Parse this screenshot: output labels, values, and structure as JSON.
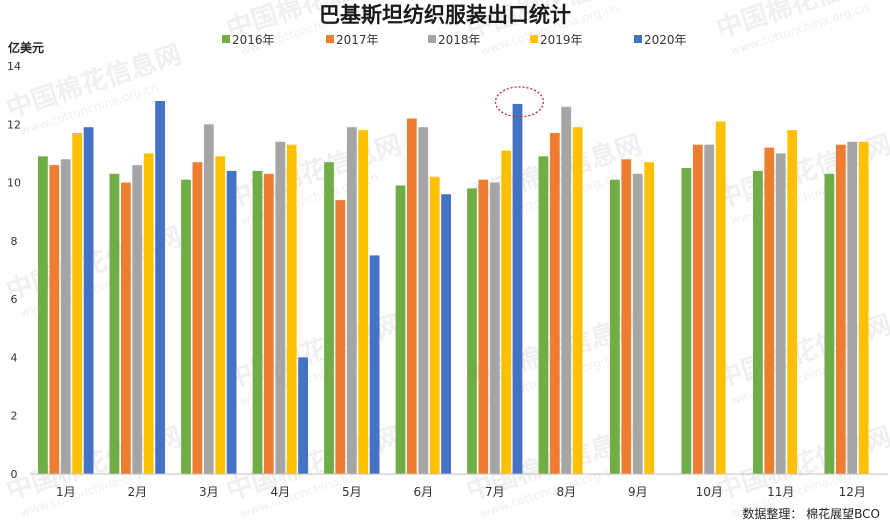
{
  "chart_data": {
    "type": "bar",
    "title": "巴基斯坦纺织服装出口统计",
    "ylabel": "亿美元",
    "xlabel": "",
    "ylim": [
      0,
      14
    ],
    "yticks": [
      0,
      2,
      4,
      6,
      8,
      10,
      12,
      14
    ],
    "grid": false,
    "legend_position": "top",
    "categories": [
      "1月",
      "2月",
      "3月",
      "4月",
      "5月",
      "6月",
      "7月",
      "8月",
      "9月",
      "10月",
      "11月",
      "12月"
    ],
    "series": [
      {
        "name": "2016年",
        "color": "#70ad47",
        "values": [
          10.9,
          10.3,
          10.1,
          10.4,
          10.7,
          9.9,
          9.8,
          10.9,
          10.1,
          10.5,
          10.4,
          10.3
        ]
      },
      {
        "name": "2017年",
        "color": "#ed7d31",
        "values": [
          10.6,
          10.0,
          10.7,
          10.3,
          9.4,
          12.2,
          10.1,
          11.7,
          10.8,
          11.3,
          11.2,
          11.3
        ]
      },
      {
        "name": "2018年",
        "color": "#a5a5a5",
        "values": [
          10.8,
          10.6,
          12.0,
          11.4,
          11.9,
          11.9,
          10.0,
          12.6,
          10.3,
          11.3,
          11.0,
          11.4
        ]
      },
      {
        "name": "2019年",
        "color": "#ffc000",
        "values": [
          11.7,
          11.0,
          10.9,
          11.3,
          11.8,
          10.2,
          11.1,
          11.9,
          10.7,
          12.1,
          11.8,
          11.4
        ]
      },
      {
        "name": "2020年",
        "color": "#4472c4",
        "values": [
          11.9,
          12.8,
          10.4,
          4.0,
          7.5,
          9.6,
          12.7,
          null,
          null,
          null,
          null,
          null
        ]
      }
    ],
    "annotation": {
      "type": "dotted-ellipse",
      "category_index": 6,
      "series_index": 4,
      "color": "#e02020"
    }
  },
  "watermark": {
    "brand": "中国棉花信息网",
    "url": "www.cottonchina.org.cn"
  },
  "source": "数据整理：  棉花展望BCO"
}
